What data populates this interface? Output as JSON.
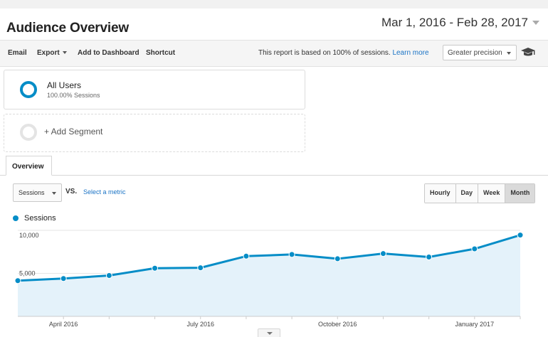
{
  "header": {
    "title": "Audience Overview",
    "date_range": "Mar 1, 2016 - Feb 28, 2017"
  },
  "toolbar": {
    "email": "Email",
    "export": "Export",
    "add_to_dashboard": "Add to Dashboard",
    "shortcut": "Shortcut",
    "report_note": "This report is based on 100% of sessions.",
    "learn_more": "Learn more",
    "precision": "Greater precision",
    "cap_icon": "graduation-cap-icon"
  },
  "segments": [
    {
      "name": "All Users",
      "sub": "100.00% Sessions",
      "color": "#058dc7"
    },
    {
      "name": "+ Add Segment"
    }
  ],
  "tabs": [
    {
      "label": "Overview",
      "active": true
    }
  ],
  "controls": {
    "metric": "Sessions",
    "vs": "VS.",
    "select_metric": "Select a metric",
    "granularity": [
      "Hourly",
      "Day",
      "Week",
      "Month"
    ],
    "active_granularity": "Month"
  },
  "colors": {
    "accent": "#058dc7",
    "area_fill": "#e4f2fa",
    "link": "#1a73c5"
  },
  "chart_data": {
    "type": "area",
    "legend": [
      "Sessions"
    ],
    "x": [
      "2016-03",
      "2016-04",
      "2016-05",
      "2016-06",
      "2016-07",
      "2016-08",
      "2016-09",
      "2016-10",
      "2016-11",
      "2016-12",
      "2017-01",
      "2017-02"
    ],
    "series": [
      {
        "name": "Sessions",
        "values": [
          4150,
          4400,
          4750,
          5600,
          5650,
          7000,
          7200,
          6700,
          7300,
          6900,
          7850,
          9450
        ]
      }
    ],
    "y_ticks": [
      "10,000",
      "5,000"
    ],
    "x_tick_labels": [
      "April 2016",
      "July 2016",
      "October 2016",
      "January 2017"
    ],
    "ylim": [
      0,
      10000
    ],
    "grid": true
  }
}
